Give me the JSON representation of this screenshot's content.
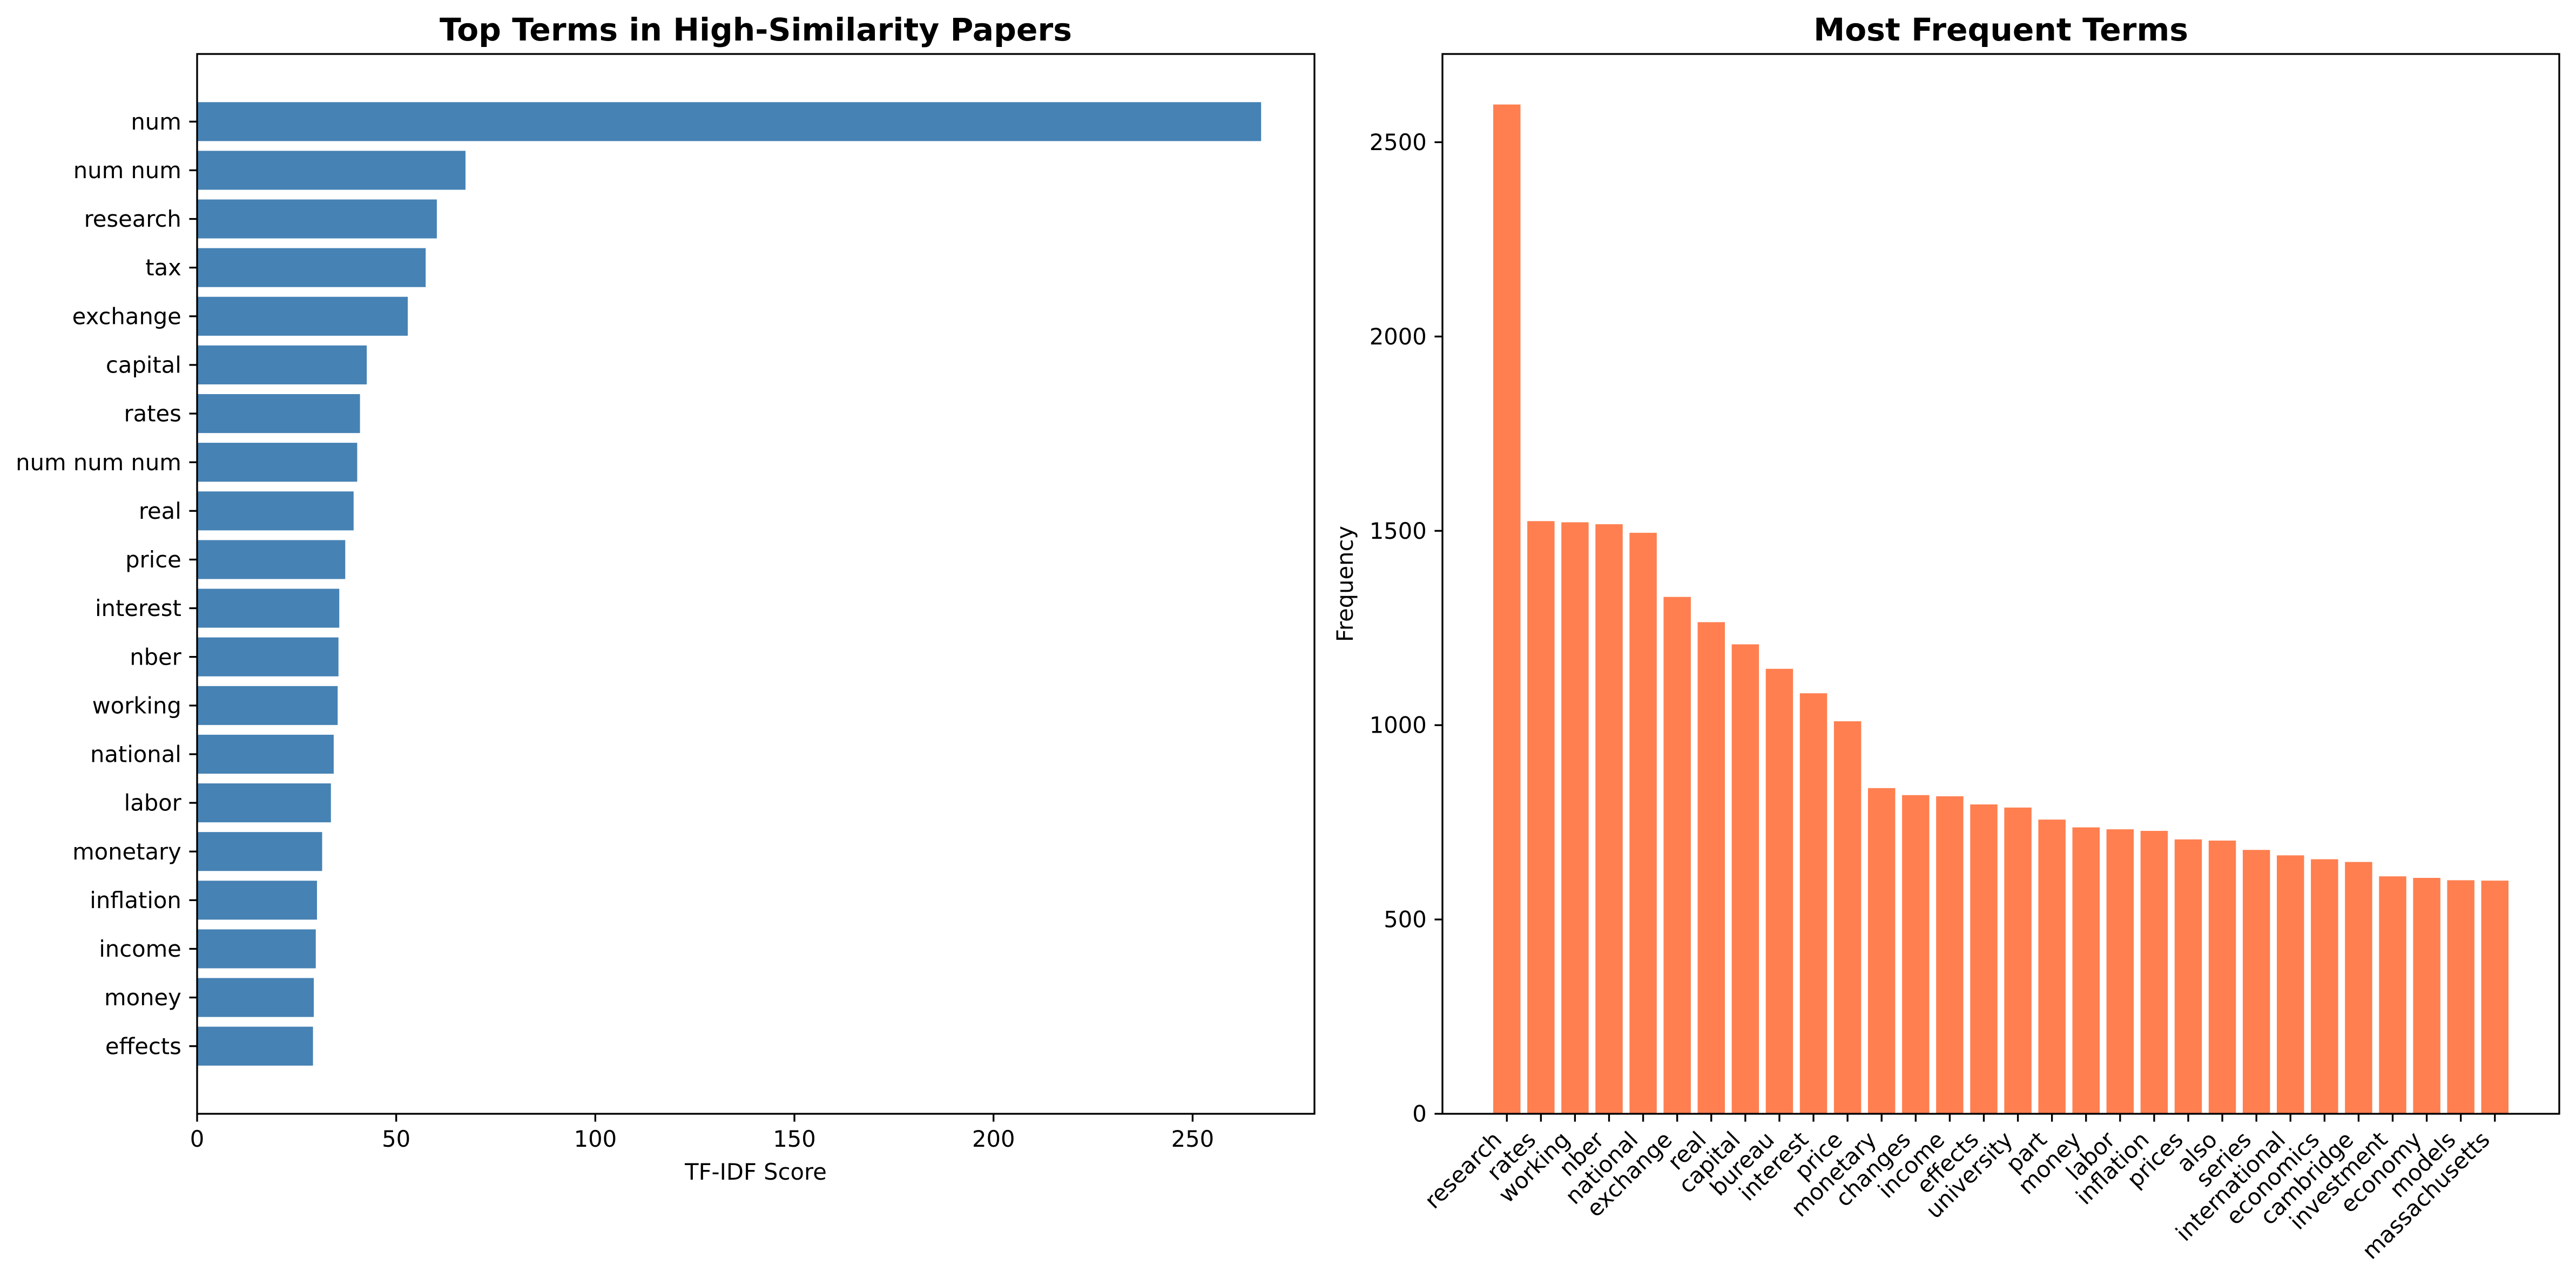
{
  "figure": {
    "background": "#ffffff"
  },
  "chart_data": [
    {
      "type": "bar",
      "orientation": "horizontal",
      "title": "Top Terms in High-Similarity Papers",
      "xlabel": "TF-IDF Score",
      "ylabel": "",
      "categories": [
        "num",
        "num num",
        "research",
        "tax",
        "exchange",
        "capital",
        "rates",
        "num num num",
        "real",
        "price",
        "interest",
        "nber",
        "working",
        "national",
        "labor",
        "monetary",
        "inflation",
        "income",
        "money",
        "effects"
      ],
      "values": [
        267.2,
        67.4,
        60.2,
        57.4,
        52.9,
        42.6,
        40.9,
        40.2,
        39.3,
        37.2,
        35.7,
        35.5,
        35.3,
        34.3,
        33.6,
        31.4,
        30.1,
        29.8,
        29.3,
        29.1
      ],
      "xlim": [
        0,
        280.6
      ],
      "xticks": [
        0,
        50,
        100,
        150,
        200,
        250
      ],
      "color": "#4682B4",
      "grid": false
    },
    {
      "type": "bar",
      "orientation": "vertical",
      "title": "Most Frequent Terms",
      "xlabel": "",
      "ylabel": "Frequency",
      "categories": [
        "research",
        "rates",
        "working",
        "nber",
        "national",
        "exchange",
        "real",
        "capital",
        "bureau",
        "interest",
        "price",
        "monetary",
        "changes",
        "income",
        "effects",
        "university",
        "part",
        "money",
        "labor",
        "inflation",
        "prices",
        "also",
        "series",
        "international",
        "economics",
        "cambridge",
        "investment",
        "economy",
        "models",
        "massachusetts"
      ],
      "values": [
        2597,
        1525,
        1522,
        1517,
        1495,
        1330,
        1265,
        1208,
        1145,
        1082,
        1010,
        838,
        820,
        817,
        796,
        788,
        757,
        737,
        732,
        728,
        706,
        703,
        679,
        665,
        655,
        648,
        611,
        607,
        601,
        600
      ],
      "ylim": [
        0,
        2727
      ],
      "yticks": [
        0,
        500,
        1000,
        1500,
        2000,
        2500
      ],
      "color": "#FF7F50",
      "grid": false
    }
  ]
}
